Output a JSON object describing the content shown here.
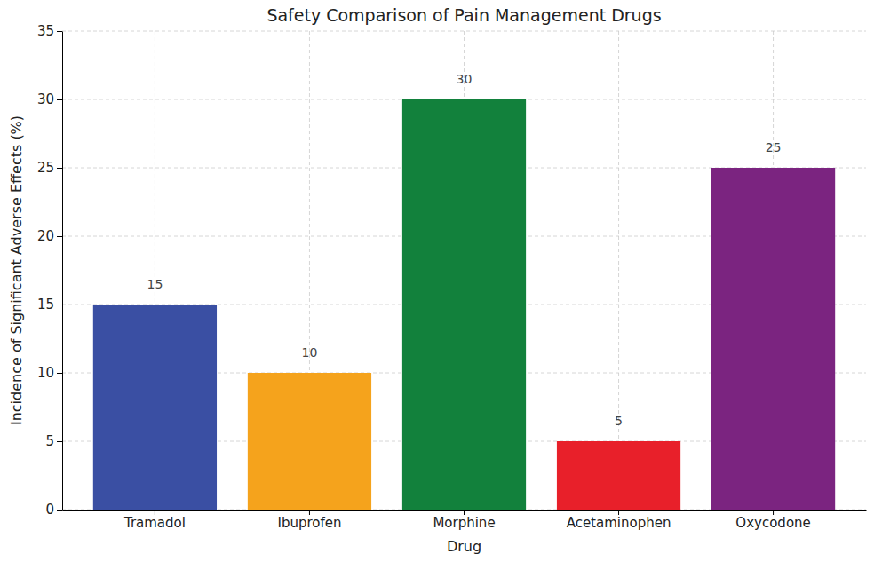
{
  "chart_data": {
    "type": "bar",
    "title": "Safety Comparison of Pain Management Drugs",
    "x_label": "Drug",
    "y_label": "Incidence of Significant Adverse Effects (%)",
    "categories": [
      "Tramadol",
      "Ibuprofen",
      "Morphine",
      "Acetaminophen",
      "Oxycodone"
    ],
    "values": [
      15,
      10,
      30,
      5,
      25
    ],
    "colors": [
      "#3a4fa3",
      "#f5a31c",
      "#12813c",
      "#e8202a",
      "#7b2480"
    ],
    "ylim": [
      0,
      35
    ],
    "yticks": [
      0,
      5,
      10,
      15,
      20,
      25,
      30,
      35
    ],
    "grid": true,
    "data_labels": true
  }
}
